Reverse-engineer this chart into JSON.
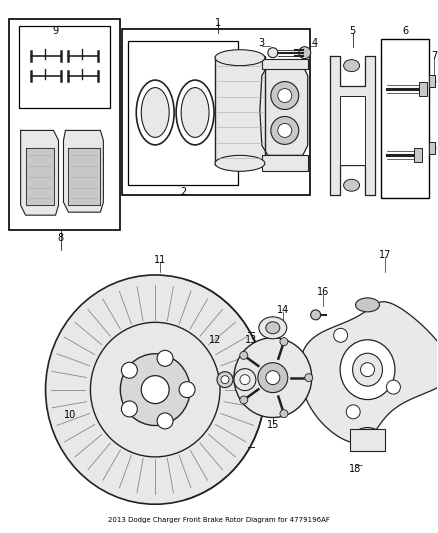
{
  "title": "2013 Dodge Charger Front Brake Rotor Diagram for 4779196AF",
  "background_color": "#ffffff",
  "fig_width": 4.38,
  "fig_height": 5.33,
  "dpi": 100,
  "text_color": "#000000",
  "line_color": "#222222",
  "part_fill": "#e8e8e8",
  "part_fill_dark": "#c8c8c8",
  "white": "#ffffff"
}
